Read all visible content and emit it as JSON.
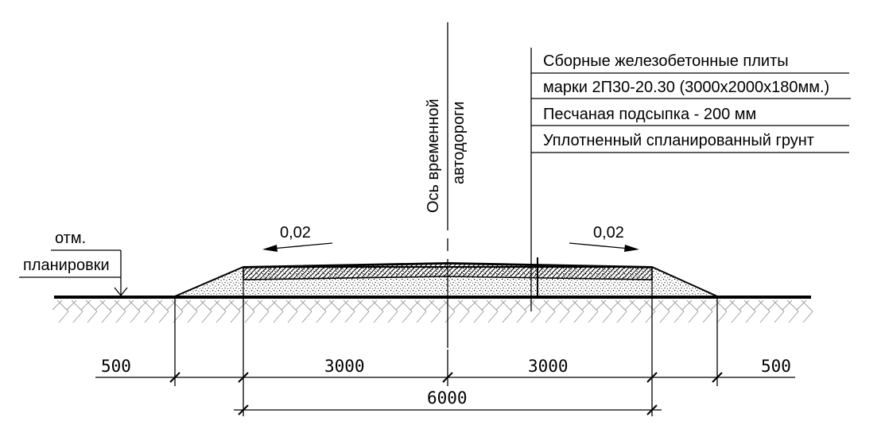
{
  "axis_label": {
    "line1": "Ось временной",
    "line2": "автодороги"
  },
  "layers": [
    "Сборные железобетонные плиты",
    "марки 2П30-20.30 (3000х2000х180мм.)",
    "Песчаная подсыпка - 200 мм",
    "Уплотненный спланированный грунт"
  ],
  "slope_left": "0,02",
  "slope_right": "0,02",
  "level_mark": {
    "line1": "отм.",
    "line2": "планировки"
  },
  "dimensions": {
    "left_shoulder": "500",
    "left_half": "3000",
    "right_half": "3000",
    "right_shoulder": "500",
    "total": "6000"
  }
}
